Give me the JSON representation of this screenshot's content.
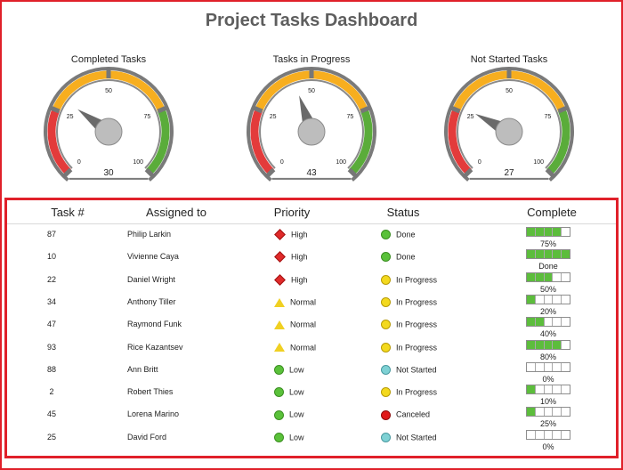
{
  "title": "Project Tasks Dashboard",
  "gauges": [
    {
      "label": "Completed Tasks",
      "value": 30
    },
    {
      "label": "Tasks in Progress",
      "value": 43
    },
    {
      "label": "Not Started Tasks",
      "value": 27
    }
  ],
  "gauge_scale": {
    "min": 0,
    "max": 100,
    "ticks": [
      "0",
      "25",
      "50",
      "75",
      "100"
    ]
  },
  "colors": {
    "red": "#e33b3b",
    "orange": "#f7ae1f",
    "green": "#5aac3a",
    "frame": "#e0202a"
  },
  "table": {
    "headers": {
      "task": "Task #",
      "assigned": "Assigned to",
      "priority": "Priority",
      "status": "Status",
      "complete": "Complete"
    },
    "rows": [
      {
        "task": "87",
        "name": "Philip Larkin",
        "priority": "High",
        "priority_icon": "diamond",
        "status": "Done",
        "status_color": "green",
        "complete": 0.75,
        "complete_label": "75%"
      },
      {
        "task": "10",
        "name": "Vivienne Caya",
        "priority": "High",
        "priority_icon": "diamond",
        "status": "Done",
        "status_color": "green",
        "complete": 1.0,
        "complete_label": "Done"
      },
      {
        "task": "22",
        "name": "Daniel Wright",
        "priority": "High",
        "priority_icon": "diamond",
        "status": "In Progress",
        "status_color": "yellow",
        "complete": 0.5,
        "complete_label": "50%"
      },
      {
        "task": "34",
        "name": "Anthony Tiller",
        "priority": "Normal",
        "priority_icon": "triangle",
        "status": "In Progress",
        "status_color": "yellow",
        "complete": 0.2,
        "complete_label": "20%"
      },
      {
        "task": "47",
        "name": "Raymond Funk",
        "priority": "Normal",
        "priority_icon": "triangle",
        "status": "In Progress",
        "status_color": "yellow",
        "complete": 0.4,
        "complete_label": "40%"
      },
      {
        "task": "93",
        "name": "Rice Kazantsev",
        "priority": "Normal",
        "priority_icon": "triangle",
        "status": "In Progress",
        "status_color": "yellow",
        "complete": 0.8,
        "complete_label": "80%"
      },
      {
        "task": "88",
        "name": "Ann Britt",
        "priority": "Low",
        "priority_icon": "circle",
        "status": "Not Started",
        "status_color": "cyan",
        "complete": 0.0,
        "complete_label": "0%"
      },
      {
        "task": "2",
        "name": "Robert Thies",
        "priority": "Low",
        "priority_icon": "circle",
        "status": "In Progress",
        "status_color": "yellow",
        "complete": 0.1,
        "complete_label": "10%"
      },
      {
        "task": "45",
        "name": "Lorena Marino",
        "priority": "Low",
        "priority_icon": "circle",
        "status": "Canceled",
        "status_color": "red",
        "complete": 0.25,
        "complete_label": "25%"
      },
      {
        "task": "25",
        "name": "David Ford",
        "priority": "Low",
        "priority_icon": "circle",
        "status": "Not Started",
        "status_color": "cyan",
        "complete": 0.0,
        "complete_label": "0%"
      }
    ]
  }
}
